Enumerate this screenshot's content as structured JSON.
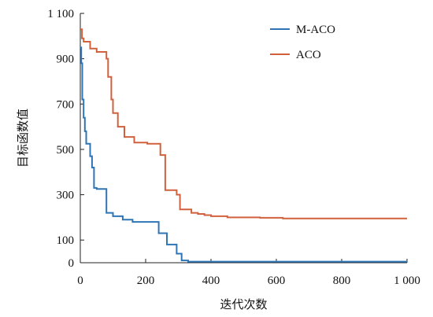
{
  "chart_data": {
    "type": "line",
    "xlabel": "迭代次数",
    "ylabel": "目标函数值",
    "xlim": [
      0,
      1000
    ],
    "ylim": [
      0,
      1100
    ],
    "x_ticks": [
      0,
      200,
      400,
      600,
      800,
      1000
    ],
    "x_tick_labels": [
      "0",
      "200",
      "400",
      "600",
      "800",
      "1 000"
    ],
    "y_ticks": [
      0,
      100,
      300,
      500,
      700,
      900,
      1100
    ],
    "y_tick_labels": [
      "0",
      "100",
      "300",
      "500",
      "700",
      "900",
      "1 100"
    ],
    "grid": false,
    "legend_position": "top-right",
    "series": [
      {
        "name": "M-ACO",
        "color": "#2e75b6",
        "x": [
          0,
          3,
          3,
          6,
          6,
          10,
          10,
          14,
          14,
          18,
          18,
          30,
          30,
          36,
          36,
          42,
          42,
          50,
          50,
          80,
          80,
          100,
          100,
          130,
          130,
          160,
          160,
          240,
          240,
          265,
          265,
          295,
          295,
          310,
          310,
          330,
          330,
          500,
          1000
        ],
        "y": [
          950,
          950,
          880,
          880,
          720,
          720,
          640,
          640,
          580,
          580,
          525,
          525,
          470,
          470,
          420,
          420,
          330,
          330,
          325,
          325,
          220,
          220,
          205,
          205,
          190,
          190,
          180,
          180,
          130,
          130,
          80,
          80,
          40,
          40,
          10,
          10,
          5,
          5,
          5
        ]
      },
      {
        "name": "ACO",
        "color": "#d1603d",
        "x": [
          0,
          5,
          5,
          10,
          10,
          30,
          30,
          50,
          50,
          80,
          80,
          85,
          85,
          95,
          95,
          100,
          100,
          115,
          115,
          135,
          135,
          165,
          165,
          205,
          205,
          245,
          245,
          260,
          260,
          295,
          295,
          305,
          305,
          340,
          340,
          360,
          360,
          380,
          380,
          400,
          400,
          450,
          450,
          550,
          550,
          620,
          620,
          800,
          1000
        ],
        "y": [
          1030,
          1030,
          990,
          990,
          975,
          975,
          945,
          945,
          930,
          930,
          900,
          900,
          820,
          820,
          720,
          720,
          660,
          660,
          600,
          600,
          555,
          555,
          530,
          530,
          525,
          525,
          475,
          475,
          320,
          320,
          300,
          300,
          235,
          235,
          220,
          220,
          215,
          215,
          210,
          210,
          205,
          205,
          200,
          200,
          198,
          198,
          195,
          195,
          195
        ]
      }
    ]
  }
}
